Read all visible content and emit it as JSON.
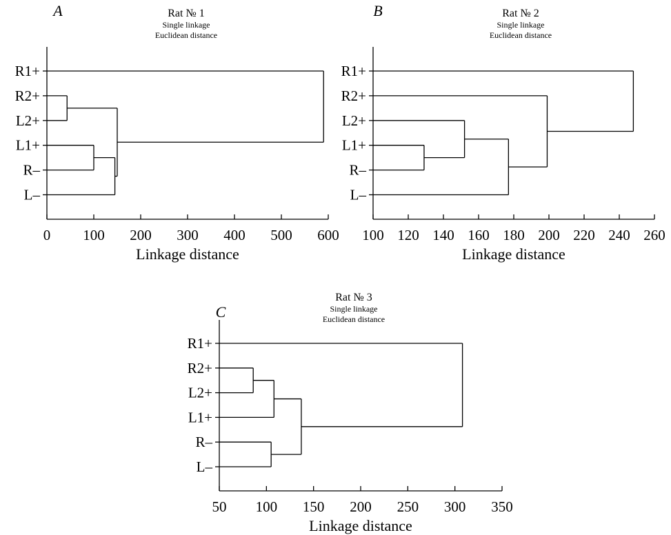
{
  "chart_data": [
    {
      "type": "dendrogram",
      "panel_letter": "A",
      "title": "Rat № 1",
      "subtitle_1": "Single linkage",
      "subtitle_2": "Euclidean distance",
      "xlabel": "Linkage distance",
      "xlim": [
        0,
        600
      ],
      "xticks": [
        "0",
        "100",
        "200",
        "300",
        "400",
        "500",
        "600"
      ],
      "leaves": [
        "R1+",
        "R2+",
        "L2+",
        "L1+",
        "R–",
        "L–"
      ],
      "merges": [
        {
          "a": "R2+",
          "b": "L2+",
          "distance": 43
        },
        {
          "a": "L1+",
          "b": "R–",
          "distance": 100
        },
        {
          "a": "L1+|R–",
          "b": "L–",
          "distance": 145
        },
        {
          "a": "R2+|L2+",
          "b": "L1+|R–|L–",
          "distance": 150
        },
        {
          "a": "R1+",
          "b": "R2+|L2+|L1+|R–|L–",
          "distance": 590
        }
      ]
    },
    {
      "type": "dendrogram",
      "panel_letter": "B",
      "title": "Rat № 2",
      "subtitle_1": "Single linkage",
      "subtitle_2": "Euclidean distance",
      "xlabel": "Linkage distance",
      "xlim": [
        100,
        260
      ],
      "xticks": [
        "100",
        "120",
        "140",
        "160",
        "180",
        "200",
        "220",
        "240",
        "260"
      ],
      "leaves": [
        "R1+",
        "R2+",
        "L2+",
        "L1+",
        "R–",
        "L–"
      ],
      "merges": [
        {
          "a": "L1+",
          "b": "R–",
          "distance": 129
        },
        {
          "a": "L2+",
          "b": "L1+|R–",
          "distance": 152
        },
        {
          "a": "L2+|L1+|R–",
          "b": "L–",
          "distance": 177
        },
        {
          "a": "R2+",
          "b": "L2+|L1+|R–|L–",
          "distance": 199
        },
        {
          "a": "R1+",
          "b": "R2+|L2+|L1+|R–|L–",
          "distance": 248
        }
      ]
    },
    {
      "type": "dendrogram",
      "panel_letter": "C",
      "title": "Rat № 3",
      "subtitle_1": "Single linkage",
      "subtitle_2": "Euclidean distance",
      "xlabel": "Linkage distance",
      "xlim": [
        50,
        350
      ],
      "xticks": [
        "50",
        "100",
        "150",
        "200",
        "250",
        "300",
        "350"
      ],
      "leaves": [
        "R1+",
        "R2+",
        "L2+",
        "L1+",
        "R–",
        "L–"
      ],
      "merges": [
        {
          "a": "R2+",
          "b": "L2+",
          "distance": 86
        },
        {
          "a": "R2+|L2+",
          "b": "L1+",
          "distance": 108
        },
        {
          "a": "R–",
          "b": "L–",
          "distance": 105
        },
        {
          "a": "R2+|L2+|L1+",
          "b": "R–|L–",
          "distance": 137
        },
        {
          "a": "R1+",
          "b": "R2+|L2+|L1+|R–|L–",
          "distance": 308
        }
      ]
    }
  ]
}
